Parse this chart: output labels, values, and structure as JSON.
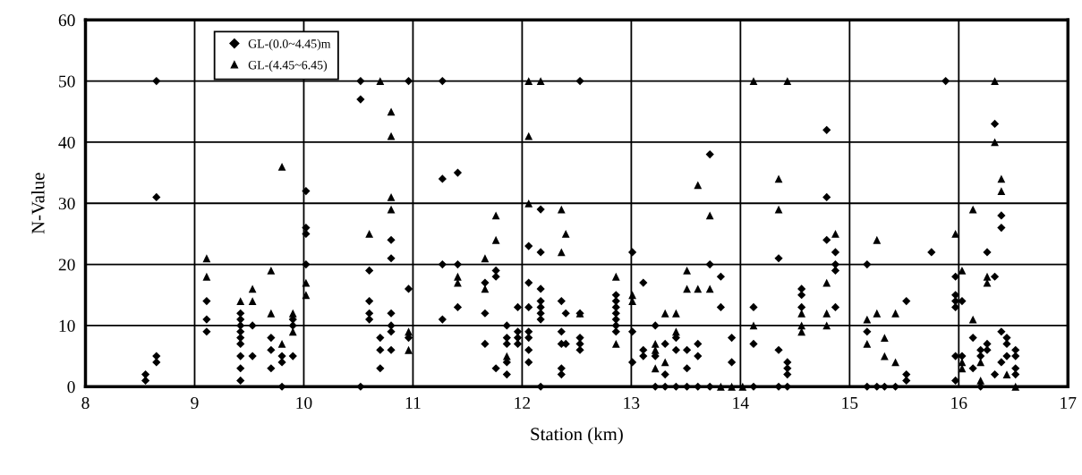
{
  "chart_data": {
    "type": "scatter",
    "xlabel": "Station (km)",
    "ylabel": "N-Value",
    "xlim": [
      8,
      17
    ],
    "xticks": [
      8,
      9,
      10,
      11,
      12,
      13,
      14,
      15,
      16,
      17
    ],
    "ylim": [
      0,
      60
    ],
    "yticks": [
      0,
      10,
      20,
      30,
      40,
      50,
      60
    ],
    "grid": true,
    "legend": "top left",
    "series": [
      {
        "name": "GL-(0.0~4.45)m",
        "color": "#000000",
        "marker": "diamond",
        "x": [
          8.55,
          8.55,
          8.65,
          8.65,
          8.65,
          8.65,
          9.11,
          9.11,
          9.11,
          9.42,
          9.42,
          9.42,
          9.42,
          9.42,
          9.42,
          9.42,
          9.42,
          9.42,
          9.53,
          9.53,
          9.7,
          9.7,
          9.7,
          9.8,
          9.8,
          9.8,
          9.9,
          9.9,
          9.9,
          10.02,
          10.02,
          10.02,
          10.02,
          10.52,
          10.52,
          10.52,
          10.6,
          10.6,
          10.6,
          10.6,
          10.7,
          10.7,
          10.7,
          10.8,
          10.8,
          10.8,
          10.8,
          10.8,
          10.8,
          10.96,
          10.96,
          10.96,
          11.27,
          11.27,
          11.27,
          11.27,
          11.41,
          11.41,
          11.41,
          11.66,
          11.66,
          11.66,
          11.76,
          11.76,
          11.76,
          11.86,
          11.86,
          11.86,
          11.86,
          11.86,
          11.96,
          11.96,
          11.96,
          11.96,
          12.06,
          12.06,
          12.06,
          12.06,
          12.06,
          12.06,
          12.06,
          12.17,
          12.17,
          12.17,
          12.17,
          12.17,
          12.17,
          12.17,
          12.17,
          12.36,
          12.36,
          12.36,
          12.36,
          12.36,
          12.4,
          12.4,
          12.53,
          12.53,
          12.53,
          12.53,
          12.53,
          12.86,
          12.86,
          12.86,
          12.86,
          12.86,
          12.86,
          12.86,
          13.01,
          13.01,
          13.01,
          13.11,
          13.11,
          13.11,
          13.22,
          13.22,
          13.22,
          13.31,
          13.31,
          13.31,
          13.41,
          13.41,
          13.41,
          13.51,
          13.51,
          13.51,
          13.61,
          13.61,
          13.61,
          13.72,
          13.72,
          13.72,
          13.82,
          13.82,
          13.92,
          13.92,
          14.12,
          14.12,
          14.12,
          14.35,
          14.35,
          14.35,
          14.43,
          14.43,
          14.43,
          14.43,
          14.56,
          14.56,
          14.56,
          14.79,
          14.79,
          14.79,
          14.87,
          14.87,
          14.87,
          14.87,
          15.16,
          15.16,
          15.16,
          15.25,
          15.32,
          15.42,
          15.52,
          15.52,
          15.52,
          15.75,
          15.88,
          15.97,
          15.97,
          15.97,
          15.97,
          15.97,
          15.97,
          16.03,
          16.03,
          16.13,
          16.13,
          16.2,
          16.2,
          16.2,
          16.26,
          16.26,
          16.26,
          16.33,
          16.33,
          16.33,
          16.39,
          16.39,
          16.39,
          16.39,
          16.44,
          16.44,
          16.44,
          16.52,
          16.52,
          16.52,
          16.52
        ],
        "values": [
          2,
          1,
          50,
          31,
          5,
          4,
          14,
          11,
          9,
          12,
          11,
          10,
          9,
          8,
          7,
          5,
          3,
          1,
          10,
          5,
          8,
          6,
          3,
          5,
          4,
          0,
          11,
          10,
          5,
          32,
          26,
          25,
          20,
          50,
          47,
          0,
          19,
          14,
          12,
          11,
          8,
          6,
          3,
          24,
          21,
          12,
          10,
          9,
          6,
          50,
          16,
          8,
          50,
          34,
          20,
          11,
          35,
          20,
          13,
          17,
          12,
          7,
          19,
          18,
          3,
          10,
          8,
          7,
          4,
          2,
          13,
          9,
          8,
          7,
          23,
          17,
          13,
          9,
          8,
          6,
          4,
          29,
          22,
          16,
          14,
          13,
          12,
          11,
          0,
          14,
          9,
          7,
          3,
          2,
          12,
          7,
          50,
          12,
          8,
          7,
          6,
          15,
          14,
          13,
          12,
          11,
          10,
          9,
          22,
          9,
          4,
          17,
          6,
          5,
          10,
          5,
          0,
          7,
          2,
          0,
          8,
          6,
          0,
          6,
          3,
          0,
          7,
          5,
          0,
          38,
          20,
          0,
          18,
          13,
          8,
          4,
          13,
          7,
          0,
          21,
          6,
          0,
          4,
          3,
          2,
          0,
          16,
          15,
          13,
          42,
          31,
          24,
          22,
          20,
          19,
          13,
          20,
          9,
          0,
          0,
          0,
          0,
          14,
          2,
          1,
          22,
          50,
          18,
          15,
          14,
          13,
          5,
          1,
          14,
          5,
          8,
          3,
          6,
          5,
          0,
          22,
          7,
          6,
          43,
          18,
          2,
          28,
          26,
          9,
          4,
          8,
          7,
          5,
          6,
          5,
          3,
          2
        ]
      },
      {
        "name": "GL-(4.45~6.45)",
        "color": "#000000",
        "marker": "triangle",
        "x": [
          9.11,
          9.11,
          9.42,
          9.53,
          9.53,
          9.7,
          9.7,
          9.8,
          9.8,
          9.9,
          9.9,
          10.02,
          10.02,
          10.6,
          10.7,
          10.8,
          10.8,
          10.8,
          10.8,
          10.96,
          10.96,
          11.41,
          11.41,
          11.66,
          11.66,
          11.76,
          11.76,
          11.86,
          12.06,
          12.06,
          12.06,
          12.17,
          12.36,
          12.36,
          12.4,
          12.53,
          12.86,
          12.86,
          13.01,
          13.01,
          13.22,
          13.22,
          13.22,
          13.31,
          13.31,
          13.41,
          13.41,
          13.51,
          13.51,
          13.61,
          13.61,
          13.72,
          13.72,
          13.82,
          13.92,
          14.02,
          14.12,
          14.12,
          14.35,
          14.35,
          14.43,
          14.56,
          14.56,
          14.56,
          14.79,
          14.79,
          14.79,
          14.87,
          15.16,
          15.16,
          15.25,
          15.25,
          15.32,
          15.32,
          15.42,
          15.42,
          15.97,
          16.03,
          16.03,
          16.03,
          16.13,
          16.13,
          16.2,
          16.2,
          16.26,
          16.26,
          16.33,
          16.33,
          16.39,
          16.39,
          16.44,
          16.52
        ],
        "values": [
          21,
          18,
          14,
          16,
          14,
          19,
          12,
          36,
          7,
          12,
          9,
          17,
          15,
          25,
          50,
          45,
          41,
          31,
          29,
          9,
          6,
          18,
          17,
          21,
          16,
          28,
          24,
          5,
          50,
          41,
          30,
          50,
          29,
          22,
          25,
          12,
          18,
          7,
          15,
          14,
          7,
          6,
          3,
          12,
          4,
          12,
          9,
          19,
          16,
          33,
          16,
          28,
          16,
          0,
          0,
          0,
          50,
          10,
          34,
          29,
          50,
          12,
          10,
          9,
          17,
          12,
          10,
          25,
          11,
          7,
          24,
          12,
          8,
          5,
          12,
          4,
          25,
          19,
          4,
          3,
          29,
          11,
          4,
          1,
          18,
          17,
          50,
          40,
          34,
          32,
          2,
          0
        ]
      }
    ]
  }
}
